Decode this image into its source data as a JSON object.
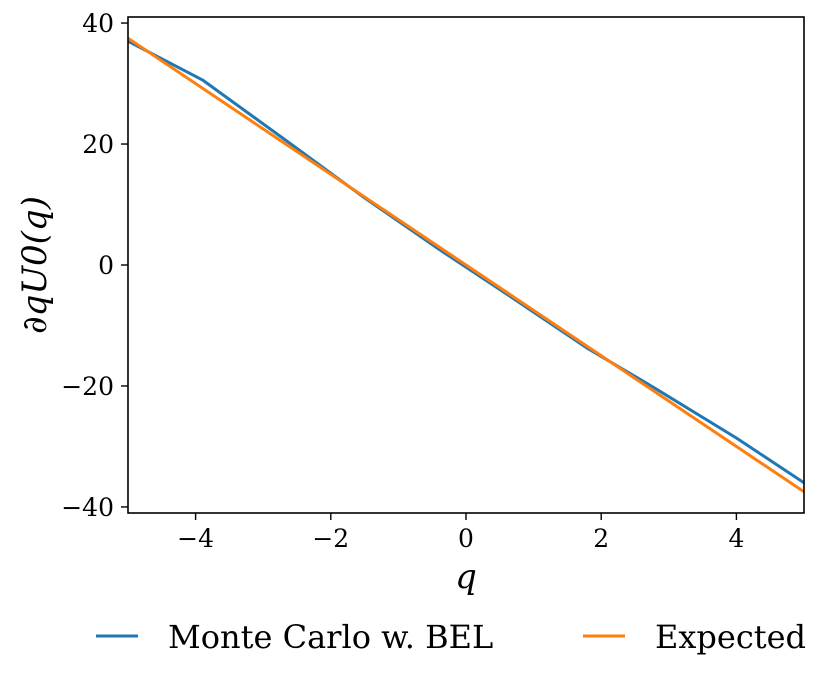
{
  "chart_data": {
    "type": "line",
    "title": "",
    "xlabel": "q",
    "ylabel": "∂qU0(q)",
    "xlim": [
      -5,
      5
    ],
    "ylim": [
      -41,
      41
    ],
    "xticks": [
      -4,
      -2,
      0,
      2,
      4
    ],
    "yticks": [
      -40,
      -20,
      0,
      20,
      40
    ],
    "xtick_labels": [
      "−4",
      "−2",
      "0",
      "2",
      "4"
    ],
    "ytick_labels": [
      "−40",
      "−20",
      "0",
      "20",
      "40"
    ],
    "grid": false,
    "legend_position": "below",
    "series": [
      {
        "name": "Monte Carlo w. BEL",
        "color": "#1f77b4",
        "x": [
          -5.0,
          -3.9,
          -2.7,
          -1.5,
          -0.4,
          0.6,
          1.8,
          2.8,
          4.0,
          5.0
        ],
        "y": [
          37.0,
          30.6,
          20.9,
          11.1,
          2.6,
          -4.8,
          -13.8,
          -20.4,
          -28.6,
          -36.0
        ]
      },
      {
        "name": "Expected",
        "color": "#ff7f0e",
        "x": [
          -5.0,
          5.0
        ],
        "y": [
          37.5,
          -37.5
        ]
      }
    ]
  }
}
